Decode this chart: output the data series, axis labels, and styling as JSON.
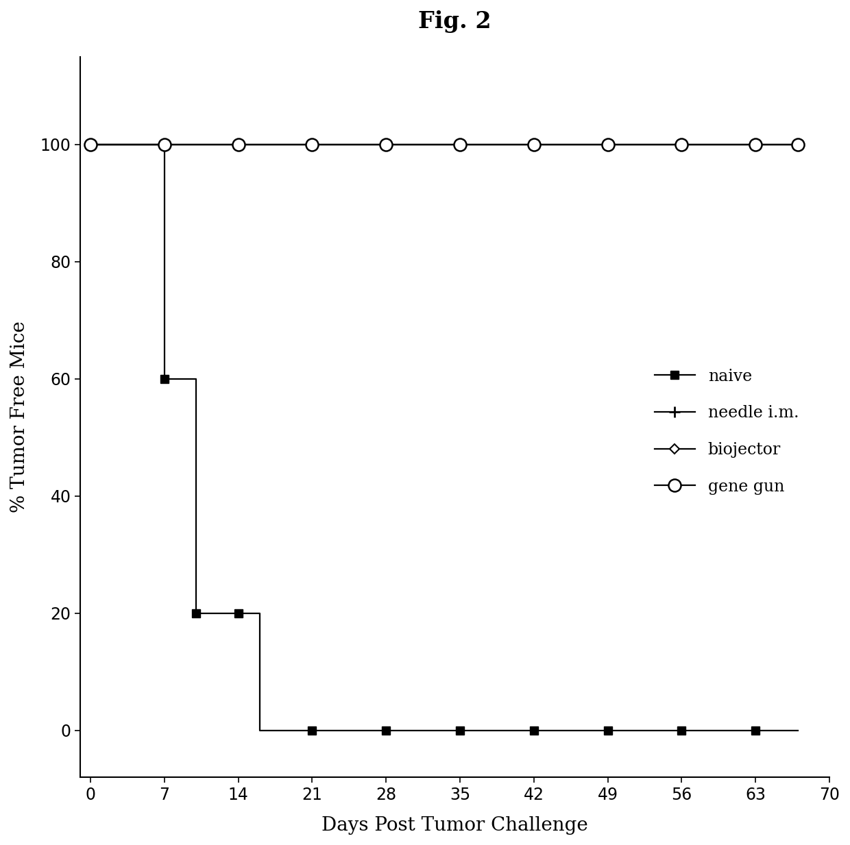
{
  "title": "Fig. 2",
  "xlabel": "Days Post Tumor Challenge",
  "ylabel": "% Tumor Free Mice",
  "xlim": [
    -1,
    70
  ],
  "ylim": [
    -8,
    115
  ],
  "xticks": [
    0,
    7,
    14,
    21,
    28,
    35,
    42,
    49,
    56,
    63,
    70
  ],
  "yticks": [
    0,
    20,
    40,
    60,
    80,
    100
  ],
  "naive_step_x": [
    0,
    7,
    7,
    10,
    10,
    14,
    14,
    16,
    16,
    67
  ],
  "naive_step_y": [
    100,
    100,
    60,
    60,
    20,
    20,
    20,
    20,
    0,
    0
  ],
  "naive_marker_x": [
    0,
    7,
    10,
    14,
    21,
    28,
    35,
    42,
    49,
    56,
    63
  ],
  "naive_marker_y": [
    100,
    60,
    20,
    20,
    0,
    0,
    0,
    0,
    0,
    0,
    0
  ],
  "needle_x": [
    0,
    7,
    14,
    21,
    28,
    35,
    42,
    49,
    56,
    63,
    67
  ],
  "needle_y": [
    100,
    100,
    100,
    100,
    100,
    100,
    100,
    100,
    100,
    100,
    100
  ],
  "biojector_x": [
    0,
    7,
    14,
    21,
    28,
    35,
    42,
    49,
    56,
    63,
    67
  ],
  "biojector_y": [
    100,
    100,
    100,
    100,
    100,
    100,
    100,
    100,
    100,
    100,
    100
  ],
  "genegun_x": [
    0,
    7,
    14,
    21,
    28,
    35,
    42,
    49,
    56,
    63,
    67
  ],
  "genegun_y": [
    100,
    100,
    100,
    100,
    100,
    100,
    100,
    100,
    100,
    100,
    100
  ],
  "line_color": "#000000",
  "background_color": "#ffffff",
  "title_fontsize": 24,
  "label_fontsize": 20,
  "tick_fontsize": 17,
  "legend_fontsize": 17
}
